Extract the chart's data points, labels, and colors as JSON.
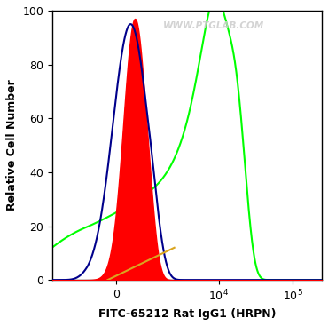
{
  "xlabel": "FITC-65212 Rat IgG1 (HRPN)",
  "ylabel": "Relative Cell Number",
  "watermark": "WWW.PTGLAB.COM",
  "ylim": [
    0,
    100
  ],
  "yticks": [
    0,
    20,
    40,
    60,
    80,
    100
  ],
  "background_color": "#ffffff",
  "blue_color": "#00008B",
  "red_color": "#FF0000",
  "green_color": "#00FF00",
  "orange_color": "#DAA520",
  "plot_bg": "#ffffff",
  "border_color": "#000000",
  "linthresh": 1000,
  "linscale": 0.35
}
